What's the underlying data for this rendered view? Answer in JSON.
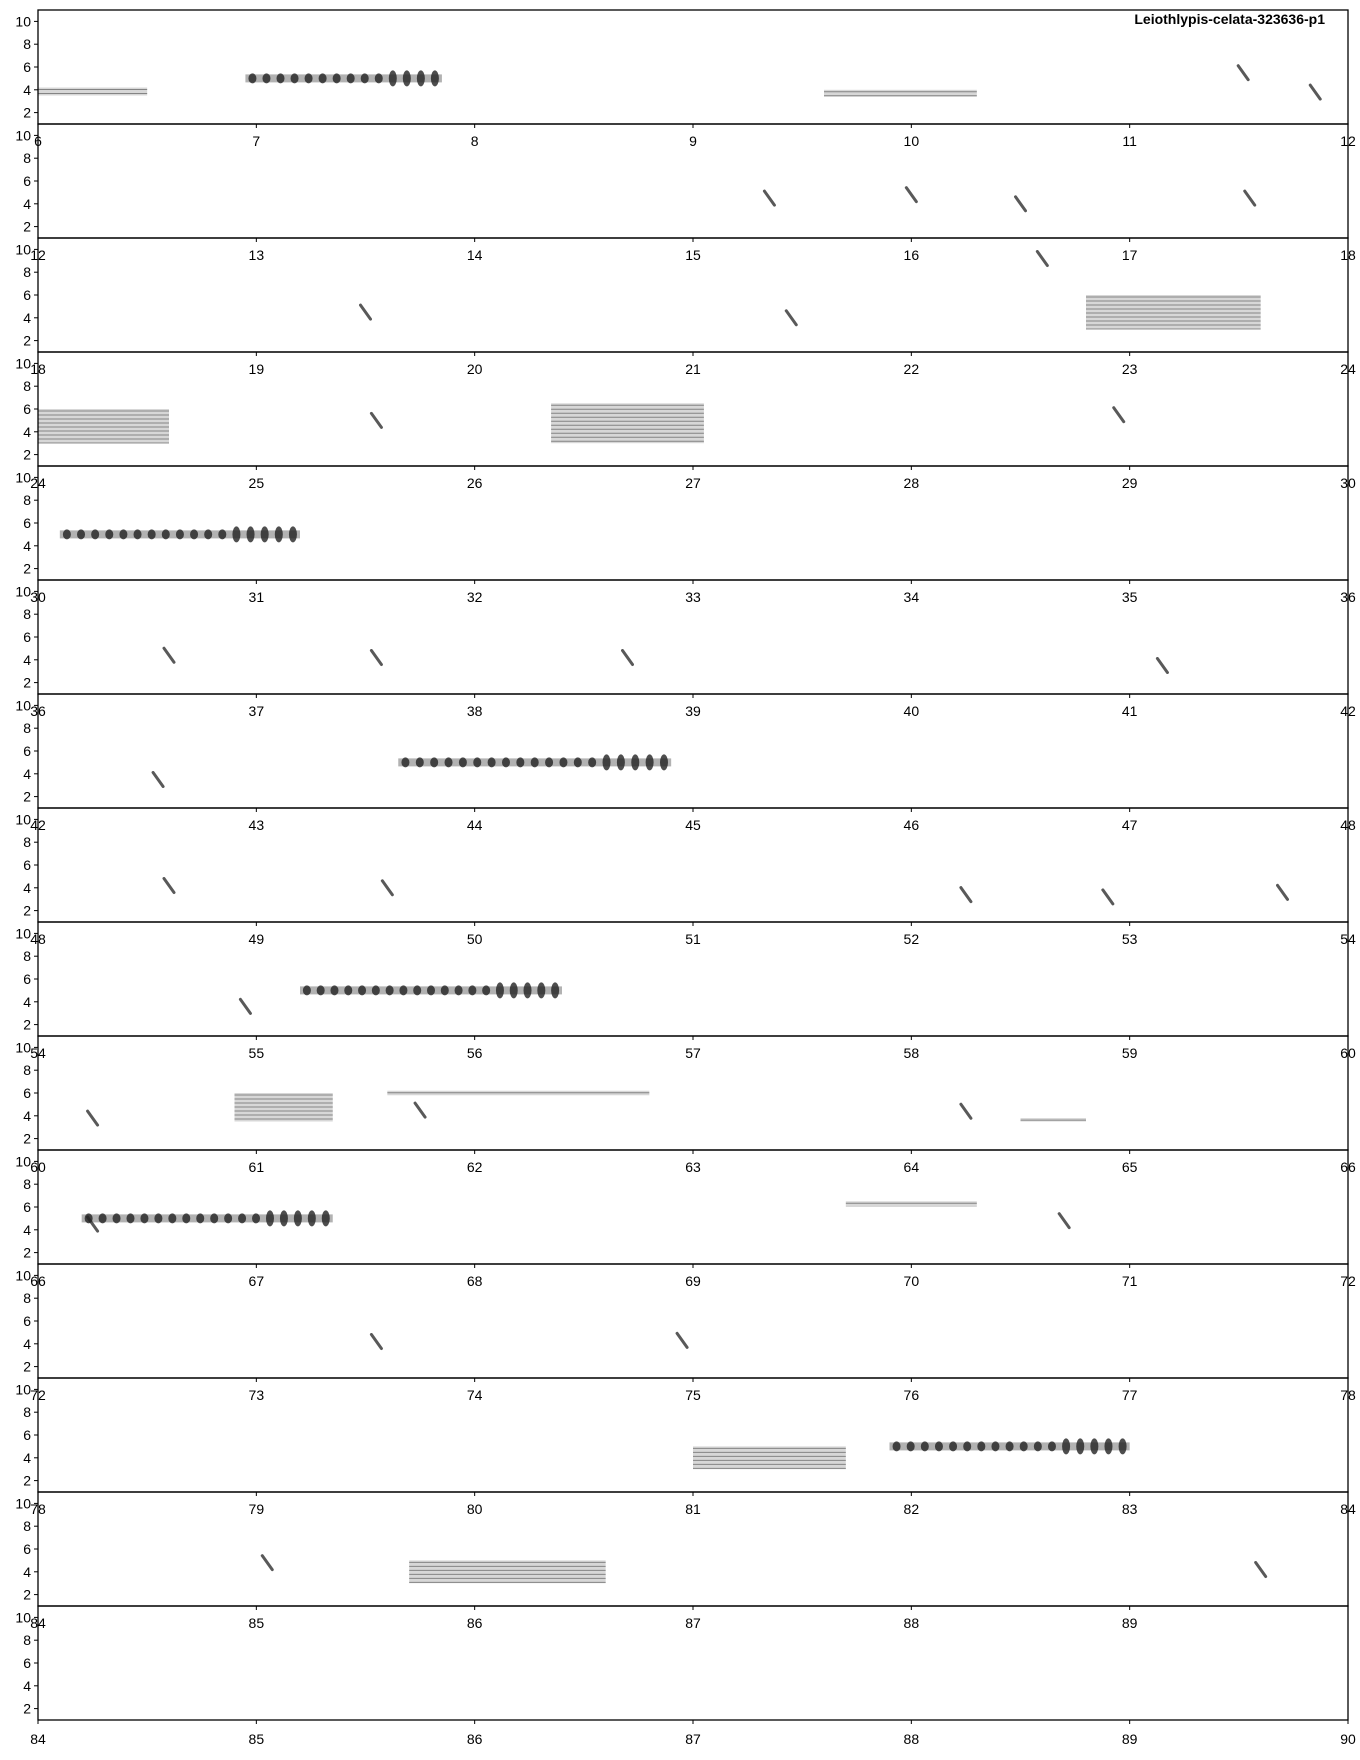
{
  "chart_data": {
    "type": "spectrogram",
    "title": "Leiothlypis-celata-323636-p1",
    "xlabel": "",
    "ylabel": "",
    "xlim": [
      0,
      90
    ],
    "rows": 15,
    "seconds_per_row": 6,
    "ylim_khz": [
      1,
      11
    ],
    "y_ticks": [
      2,
      4,
      6,
      8,
      10
    ],
    "x_ticks": [
      0,
      1,
      2,
      3,
      4,
      5,
      6,
      7,
      8,
      9,
      10,
      11,
      12,
      13,
      14,
      15,
      16,
      17,
      18,
      19,
      20,
      21,
      22,
      23,
      24,
      25,
      26,
      27,
      28,
      29,
      30,
      31,
      32,
      33,
      34,
      35,
      36,
      37,
      38,
      39,
      40,
      41,
      42,
      43,
      44,
      45,
      46,
      47,
      48,
      49,
      50,
      51,
      52,
      53,
      54,
      55,
      56,
      57,
      58,
      59,
      60,
      61,
      62,
      63,
      64,
      65,
      66,
      67,
      68,
      69,
      70,
      71,
      72,
      73,
      74,
      75,
      76,
      77,
      78,
      79,
      80,
      81,
      82,
      83,
      84,
      85,
      86,
      87,
      88,
      89,
      90
    ],
    "grid": false,
    "colors": {
      "ink": "#000000",
      "signal": "#222222",
      "background": "#ffffff"
    },
    "trills": [
      {
        "t0": 0.95,
        "t1": 1.85,
        "f": 5.0
      },
      {
        "t0": 24.1,
        "t1": 25.2,
        "f": 5.0
      },
      {
        "t0": 37.65,
        "t1": 38.9,
        "f": 5.0
      },
      {
        "t0": 49.2,
        "t1": 50.4,
        "f": 5.0
      },
      {
        "t0": 60.2,
        "t1": 61.35,
        "f": 5.0
      },
      {
        "t0": 75.9,
        "t1": 77.0,
        "f": 5.0
      }
    ],
    "bands": [
      {
        "t0": 0.0,
        "t1": 0.5,
        "f0": 3.5,
        "f1": 4.2
      },
      {
        "t0": 3.6,
        "t1": 4.3,
        "f0": 3.4,
        "f1": 4.0
      },
      {
        "t0": 16.8,
        "t1": 17.6,
        "f0": 3.0,
        "f1": 6.0
      },
      {
        "t0": 18.0,
        "t1": 18.6,
        "f0": 3.0,
        "f1": 6.0
      },
      {
        "t0": 20.35,
        "t1": 21.05,
        "f0": 3.0,
        "f1": 6.5
      },
      {
        "t0": 54.9,
        "t1": 55.35,
        "f0": 3.5,
        "f1": 6.0
      },
      {
        "t0": 55.6,
        "t1": 56.8,
        "f0": 5.8,
        "f1": 6.2
      },
      {
        "t0": 58.5,
        "t1": 58.8,
        "f0": 3.5,
        "f1": 3.8
      },
      {
        "t0": 63.7,
        "t1": 64.3,
        "f0": 6.0,
        "f1": 6.5
      },
      {
        "t0": 75.0,
        "t1": 75.7,
        "f0": 3.0,
        "f1": 5.0
      },
      {
        "t0": 79.7,
        "t1": 80.6,
        "f0": 3.0,
        "f1": 5.0
      }
    ],
    "marks": [
      {
        "t": 5.52,
        "f": 5.5
      },
      {
        "t": 5.85,
        "f": 3.8
      },
      {
        "t": 9.35,
        "f": 4.5
      },
      {
        "t": 10.0,
        "f": 4.8
      },
      {
        "t": 10.5,
        "f": 4.0
      },
      {
        "t": 11.55,
        "f": 4.5
      },
      {
        "t": 13.5,
        "f": 4.5
      },
      {
        "t": 15.45,
        "f": 4.0
      },
      {
        "t": 16.6,
        "f": 9.2
      },
      {
        "t": 19.55,
        "f": 5.0
      },
      {
        "t": 22.95,
        "f": 5.5
      },
      {
        "t": 30.6,
        "f": 4.4
      },
      {
        "t": 31.55,
        "f": 4.2
      },
      {
        "t": 32.7,
        "f": 4.2
      },
      {
        "t": 35.15,
        "f": 3.5
      },
      {
        "t": 36.55,
        "f": 3.5
      },
      {
        "t": 42.6,
        "f": 4.2
      },
      {
        "t": 43.6,
        "f": 4.0
      },
      {
        "t": 46.25,
        "f": 3.4
      },
      {
        "t": 46.9,
        "f": 3.2
      },
      {
        "t": 47.7,
        "f": 3.6
      },
      {
        "t": 48.95,
        "f": 3.6
      },
      {
        "t": 54.25,
        "f": 3.8
      },
      {
        "t": 55.75,
        "f": 4.5
      },
      {
        "t": 58.25,
        "f": 4.4
      },
      {
        "t": 60.25,
        "f": 4.5
      },
      {
        "t": 64.7,
        "f": 4.8
      },
      {
        "t": 67.55,
        "f": 4.2
      },
      {
        "t": 68.95,
        "f": 4.3
      },
      {
        "t": 79.05,
        "f": 4.8
      },
      {
        "t": 83.6,
        "f": 4.2
      }
    ]
  }
}
